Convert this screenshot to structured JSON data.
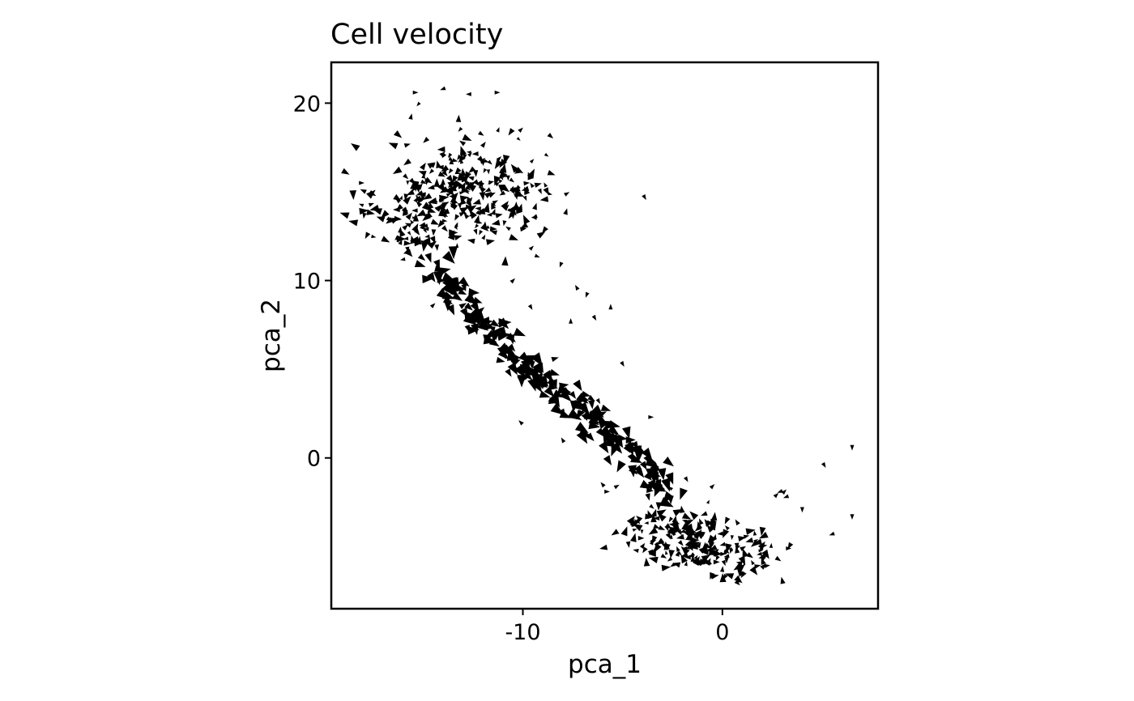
{
  "chart_data": {
    "type": "scatter",
    "marker": "arrowhead",
    "title": "Cell velocity",
    "xlabel": "pca_1",
    "ylabel": "pca_2",
    "xlim": [
      -19.6,
      7.8
    ],
    "ylim": [
      -8.5,
      22.3
    ],
    "xticks": [
      {
        "value": -10,
        "label": "-10"
      },
      {
        "value": 0,
        "label": "0"
      }
    ],
    "yticks": [
      {
        "value": 0,
        "label": "0"
      },
      {
        "value": 10,
        "label": "10"
      },
      {
        "value": 20,
        "label": "20"
      }
    ],
    "grid": false,
    "legend": "none",
    "clusters": [
      {
        "name": "upper-left cluster",
        "center": [
          -12.8,
          15.0
        ],
        "spread": [
          2.2,
          1.6
        ],
        "count": 320,
        "rotation": 0.1
      },
      {
        "name": "upper-left tail",
        "center": [
          -15.8,
          12.8
        ],
        "spread": [
          0.8,
          1.0
        ],
        "count": 40,
        "rotation": 0.5
      },
      {
        "name": "lower-right cluster",
        "center": [
          -1.0,
          -4.8
        ],
        "spread": [
          1.9,
          0.9
        ],
        "count": 220,
        "rotation": -0.25
      }
    ],
    "trajectory": [
      {
        "x": -15.0,
        "y": 12.0,
        "count": 15
      },
      {
        "x": -13.8,
        "y": 9.8,
        "count": 30
      },
      {
        "x": -12.5,
        "y": 8.2,
        "count": 35
      },
      {
        "x": -10.8,
        "y": 6.3,
        "count": 40
      },
      {
        "x": -9.0,
        "y": 4.3,
        "count": 40
      },
      {
        "x": -7.0,
        "y": 2.6,
        "count": 35
      },
      {
        "x": -5.2,
        "y": 1.2,
        "count": 30
      },
      {
        "x": -3.6,
        "y": -0.7,
        "count": 28
      },
      {
        "x": -2.6,
        "y": -2.6,
        "count": 25
      }
    ],
    "points": [
      {
        "x": -11.3,
        "y": 20.6,
        "angle": 0
      },
      {
        "x": -14.0,
        "y": 20.8,
        "angle": 200
      },
      {
        "x": -15.4,
        "y": 20.6,
        "angle": 0
      },
      {
        "x": -12.7,
        "y": 20.5,
        "angle": 180
      },
      {
        "x": -10.1,
        "y": 18.5,
        "angle": 45
      },
      {
        "x": -18.1,
        "y": 15.5,
        "angle": 0
      },
      {
        "x": -17.6,
        "y": 14.3,
        "angle": 20
      },
      {
        "x": -7.8,
        "y": 14.9,
        "angle": 30
      },
      {
        "x": -9.4,
        "y": 13.6,
        "angle": 200
      },
      {
        "x": -3.9,
        "y": 14.7,
        "angle": 300
      },
      {
        "x": -8.1,
        "y": 10.9,
        "angle": 250
      },
      {
        "x": -7.3,
        "y": 9.6,
        "angle": 120
      },
      {
        "x": -6.8,
        "y": 9.2,
        "angle": 250
      },
      {
        "x": -5.6,
        "y": 8.5,
        "angle": 90
      },
      {
        "x": -6.4,
        "y": 7.9,
        "angle": 300
      },
      {
        "x": -7.6,
        "y": 7.7,
        "angle": 90
      },
      {
        "x": -9.6,
        "y": 8.5,
        "angle": 300
      },
      {
        "x": -10.5,
        "y": 10.0,
        "angle": 45
      },
      {
        "x": -14.5,
        "y": 8.6,
        "angle": 45
      },
      {
        "x": -12.6,
        "y": 9.1,
        "angle": 30
      },
      {
        "x": -5.0,
        "y": 5.3,
        "angle": 300
      },
      {
        "x": -6.2,
        "y": 3.2,
        "angle": 300
      },
      {
        "x": -10.1,
        "y": 2.0,
        "angle": 135
      },
      {
        "x": -8.0,
        "y": 1.0,
        "angle": 120
      },
      {
        "x": -3.6,
        "y": 2.3,
        "angle": 0
      },
      {
        "x": 6.5,
        "y": 0.6,
        "angle": 270
      },
      {
        "x": 5.1,
        "y": -0.4,
        "angle": 300
      },
      {
        "x": 5.5,
        "y": -4.3,
        "angle": 200
      },
      {
        "x": 6.5,
        "y": -3.3,
        "angle": 270
      },
      {
        "x": 4.0,
        "y": -2.9,
        "angle": 270
      },
      {
        "x": 3.1,
        "y": -1.9,
        "angle": 45
      },
      {
        "x": 2.9,
        "y": -1.9,
        "angle": 200
      },
      {
        "x": 2.7,
        "y": -2.1,
        "angle": 45
      },
      {
        "x": 3.2,
        "y": -2.2,
        "angle": 200
      },
      {
        "x": 3.3,
        "y": -5.1,
        "angle": 0
      },
      {
        "x": -1.8,
        "y": -1.2,
        "angle": 300
      },
      {
        "x": -0.5,
        "y": -1.6,
        "angle": 45
      },
      {
        "x": -5.8,
        "y": -1.9,
        "angle": 0
      },
      {
        "x": -5.3,
        "y": -1.6,
        "angle": 30
      },
      {
        "x": -6.0,
        "y": -1.5,
        "angle": 130
      }
    ]
  }
}
